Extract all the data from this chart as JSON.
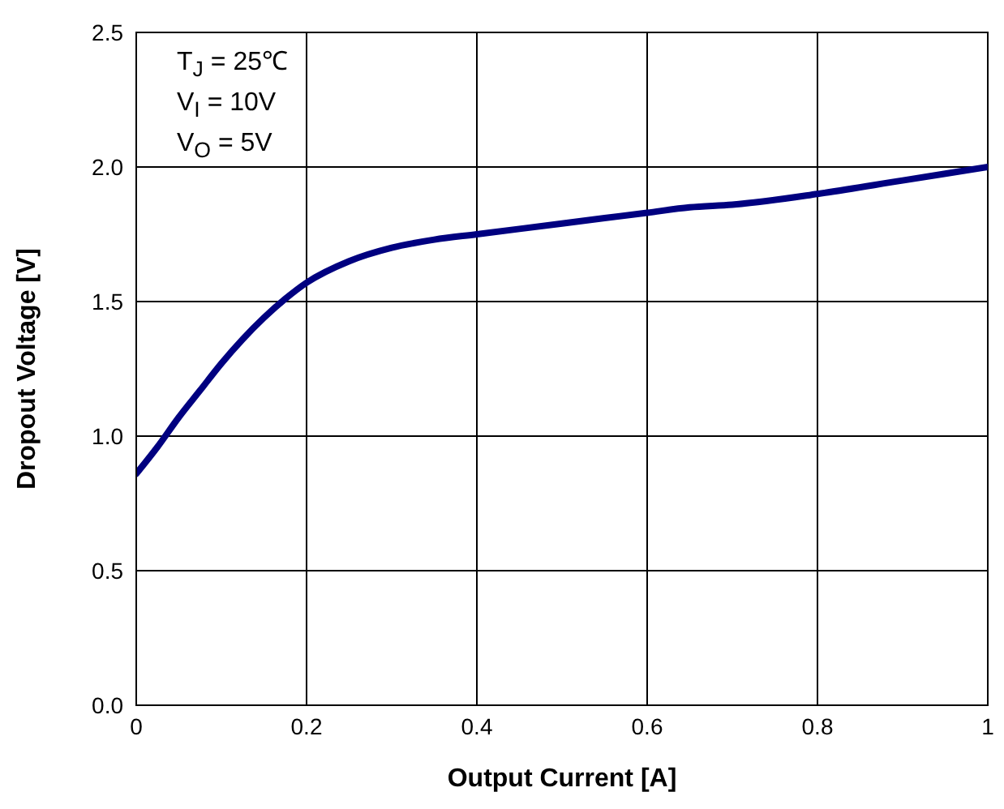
{
  "chart_data": {
    "type": "line",
    "xlabel": "Output Current [A]",
    "ylabel": "Dropout Voltage [V]",
    "x": [
      0,
      0.025,
      0.05,
      0.075,
      0.1,
      0.125,
      0.15,
      0.175,
      0.2,
      0.25,
      0.3,
      0.35,
      0.4,
      0.5,
      0.6,
      0.65,
      0.7,
      0.8,
      0.9,
      1.0
    ],
    "series": [
      {
        "color": "#000080",
        "values": [
          0.86,
          0.96,
          1.07,
          1.17,
          1.27,
          1.36,
          1.44,
          1.51,
          1.57,
          1.65,
          1.7,
          1.73,
          1.75,
          1.79,
          1.83,
          1.85,
          1.86,
          1.9,
          1.95,
          2.0
        ]
      }
    ],
    "xlim": [
      0,
      1
    ],
    "xticks": [
      0,
      0.2,
      0.4,
      0.6,
      0.8,
      1
    ],
    "ylim": [
      0,
      2.5
    ],
    "yticks": [
      {
        "value": 0,
        "label": "0.0"
      },
      {
        "value": 0.5,
        "label": "0.5"
      },
      {
        "value": 1,
        "label": "1.0"
      },
      {
        "value": 1.5,
        "label": "1.5"
      },
      {
        "value": 2,
        "label": "2.0"
      },
      {
        "value": 2.5,
        "label": "2.5"
      }
    ],
    "annotations": [
      "T$_{J}$ = 25℃",
      "V$_{I}$ = 10V",
      "V$_{O}$ = 5V"
    ],
    "grid": true,
    "marker": "none",
    "line_style": "solid"
  }
}
